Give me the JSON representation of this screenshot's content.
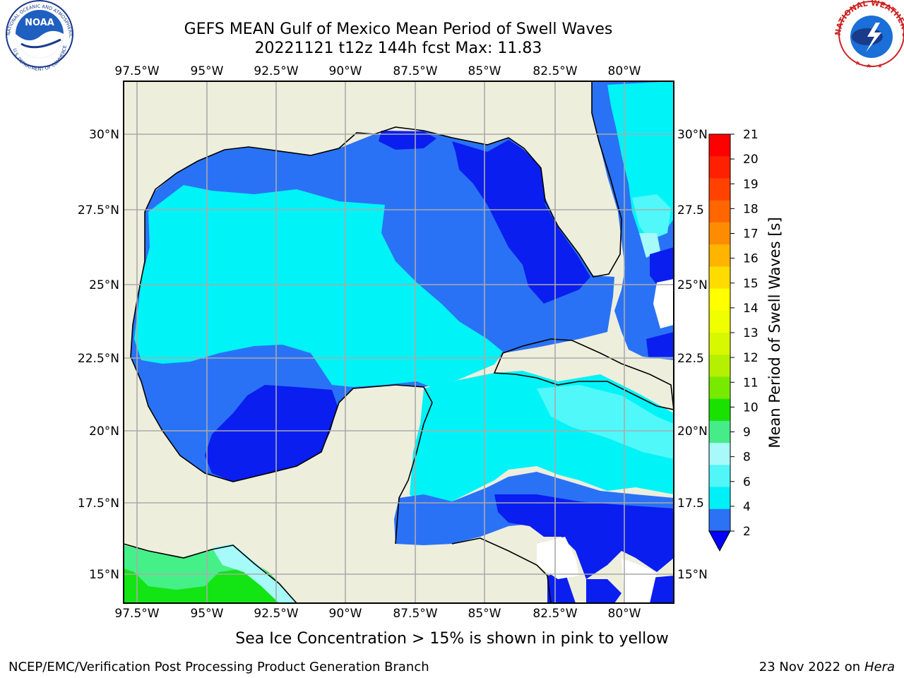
{
  "header": {
    "title_line1": "GEFS MEAN Gulf of Mexico Mean Period of Swell Waves",
    "title_line2": "20221121 t12z 144h fcst   Max: 11.83"
  },
  "logos": {
    "left": {
      "name": "NOAA",
      "ring_text": "NATIONAL OCEANIC AND ATMOSPHERIC ADMINISTRATION",
      "ring_text_bottom": "U.S. DEPARTMENT OF COMMERCE"
    },
    "right": {
      "name": "NATIONAL WEATHER SERVICE"
    }
  },
  "map": {
    "lon_labels": [
      "97.5°W",
      "95°W",
      "92.5°W",
      "90°W",
      "87.5°W",
      "85°W",
      "82.5°W",
      "80°W"
    ],
    "lat_labels_left": [
      "30°N",
      "27.5°N",
      "25°N",
      "22.5°N",
      "20°N",
      "17.5°N",
      "15°N"
    ],
    "lat_labels_right": [
      "30°N",
      "27.5",
      "25°N",
      "22.5",
      "20°N",
      "17.5",
      "15°N"
    ],
    "colors": {
      "land": "#eeeedd",
      "grid": "#aaaaaa",
      "coast": "#000000",
      "p2_4": "#2a72f5",
      "lt2": "#0a1ef0",
      "p4_6": "#00f3f7",
      "p6_8": "#50f8fa",
      "p8_9": "#a6fafa",
      "p9_10": "#46f088",
      "p10_11": "#13e413",
      "no_data": "#ffffff"
    }
  },
  "colorbar": {
    "label": "Mean Period of Swell Waves [s]",
    "ticks": [
      "21",
      "20",
      "19",
      "18",
      "17",
      "16",
      "15",
      "14",
      "13",
      "12",
      "11",
      "10",
      "9",
      "8",
      "6",
      "4",
      "2"
    ],
    "levels": [
      {
        "color": "#ff0000"
      },
      {
        "color": "#ff2000"
      },
      {
        "color": "#ff4200"
      },
      {
        "color": "#ff6600"
      },
      {
        "color": "#ff8c00"
      },
      {
        "color": "#ffb400"
      },
      {
        "color": "#ffdc00"
      },
      {
        "color": "#ffff00"
      },
      {
        "color": "#f0ff00"
      },
      {
        "color": "#d8f800"
      },
      {
        "color": "#b4f000"
      },
      {
        "color": "#78ea00"
      },
      {
        "color": "#1ae200"
      },
      {
        "color": "#46ec88"
      },
      {
        "color": "#a8fafa"
      },
      {
        "color": "#50f6f8"
      },
      {
        "color": "#00f0f8"
      },
      {
        "color": "#2b72f5"
      }
    ],
    "extend_color": "#0000ff"
  },
  "footer": {
    "note": "Sea Ice Concentration > 15% is shown in pink to yellow",
    "credit": "NCEP/EMC/Verification Post Processing Product Generation Branch",
    "date_prefix": "23 Nov 2022 on",
    "date_machine": "Hera"
  }
}
